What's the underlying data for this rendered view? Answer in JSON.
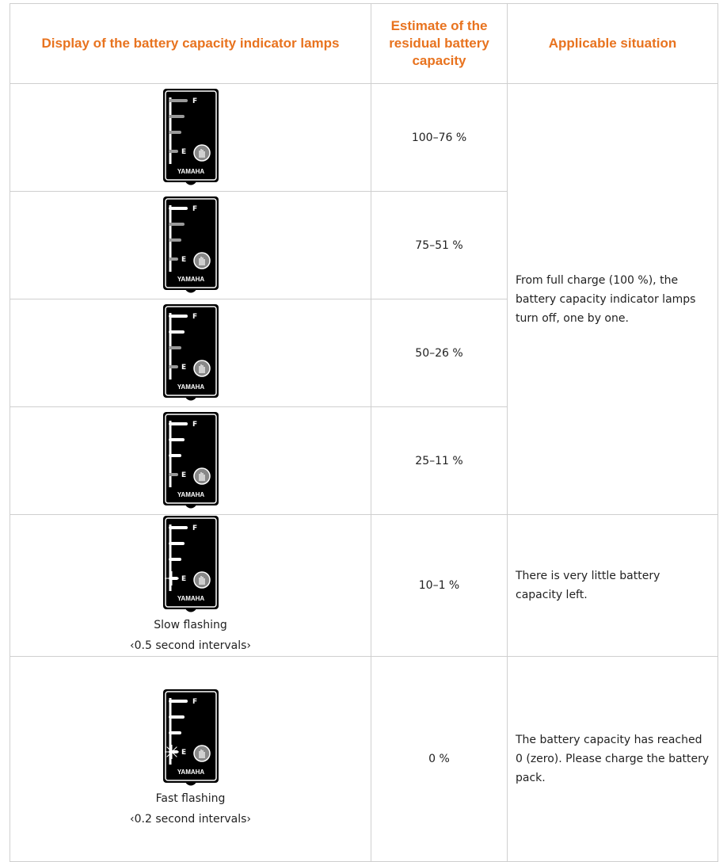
{
  "table": {
    "headers": [
      "Display of the battery capacity indicator lamps",
      "Estimate of the residual battery capacity",
      "Applicable situation"
    ],
    "icon": {
      "full": "F",
      "empty": "E",
      "brand": "YAMAHA"
    },
    "rows": [
      {
        "estimate": "100–76 %"
      },
      {
        "estimate": "75–51 %"
      },
      {
        "estimate": "50–26 %"
      },
      {
        "estimate": "25–11 %"
      },
      {
        "estimate": "10–1 %",
        "caption": [
          "Slow flashing",
          "‹0.5 second intervals›"
        ],
        "situation": "There is very little battery capacity left."
      },
      {
        "estimate": "0 %",
        "caption": [
          "Fast flashing",
          "‹0.2 second intervals›"
        ],
        "situation": "The battery capacity has reached 0 (zero). Please charge the battery pack."
      }
    ],
    "shared_situation": "From full charge (100 %), the battery capacity indicator lamps turn off, one by one."
  }
}
